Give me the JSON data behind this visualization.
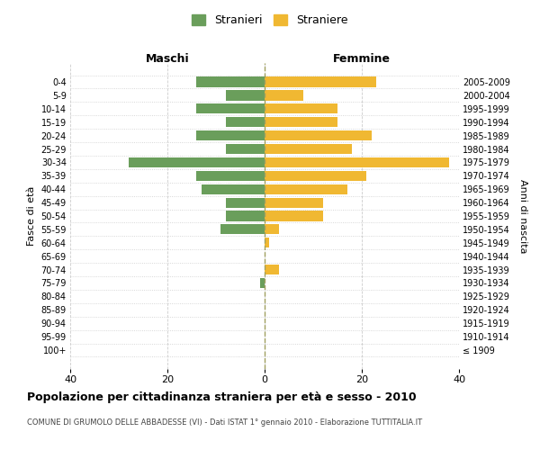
{
  "age_groups": [
    "100+",
    "95-99",
    "90-94",
    "85-89",
    "80-84",
    "75-79",
    "70-74",
    "65-69",
    "60-64",
    "55-59",
    "50-54",
    "45-49",
    "40-44",
    "35-39",
    "30-34",
    "25-29",
    "20-24",
    "15-19",
    "10-14",
    "5-9",
    "0-4"
  ],
  "birth_years": [
    "≤ 1909",
    "1910-1914",
    "1915-1919",
    "1920-1924",
    "1925-1929",
    "1930-1934",
    "1935-1939",
    "1940-1944",
    "1945-1949",
    "1950-1954",
    "1955-1959",
    "1960-1964",
    "1965-1969",
    "1970-1974",
    "1975-1979",
    "1980-1984",
    "1985-1989",
    "1990-1994",
    "1995-1999",
    "2000-2004",
    "2005-2009"
  ],
  "maschi": [
    0,
    0,
    0,
    0,
    0,
    1,
    0,
    0,
    0,
    9,
    8,
    8,
    13,
    14,
    28,
    8,
    14,
    8,
    14,
    8,
    14
  ],
  "femmine": [
    0,
    0,
    0,
    0,
    0,
    0,
    3,
    0,
    1,
    3,
    12,
    12,
    17,
    21,
    38,
    18,
    22,
    15,
    15,
    8,
    23
  ],
  "maschi_color": "#6a9e5b",
  "femmine_color": "#f0b832",
  "background_color": "#ffffff",
  "grid_color": "#cccccc",
  "title": "Popolazione per cittadinanza straniera per età e sesso - 2010",
  "subtitle": "COMUNE DI GRUMOLO DELLE ABBADESSE (VI) - Dati ISTAT 1° gennaio 2010 - Elaborazione TUTTITALIA.IT",
  "ylabel_left": "Fasce di età",
  "ylabel_right": "Anni di nascita",
  "xlabel_left": "Maschi",
  "xlabel_top_right": "Femmine",
  "legend_stranieri": "Stranieri",
  "legend_straniere": "Straniere",
  "xlim": 40
}
